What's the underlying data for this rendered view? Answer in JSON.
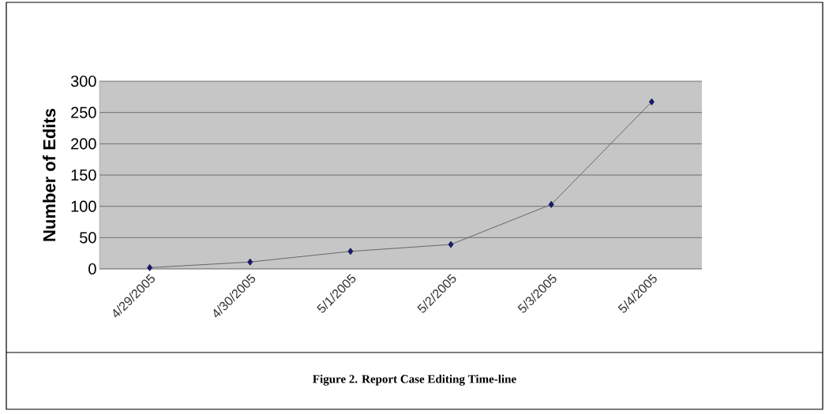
{
  "chart_data": {
    "type": "line",
    "title": "Figure 2.  Report Case Editing Time-line",
    "ylabel": "Number of Edits",
    "categories": [
      "4/29/2005",
      "4/30/2005",
      "5/1/2005",
      "5/2/2005",
      "5/3/2005",
      "5/4/2005"
    ],
    "series": [
      {
        "color": "#1a1a66",
        "values": [
          2,
          11,
          28,
          39,
          103,
          267
        ]
      }
    ],
    "ylim": [
      0,
      300
    ],
    "yticks": [
      0,
      50,
      100,
      150,
      200,
      250,
      300
    ],
    "grid": "y",
    "marker": "diamond",
    "line_style": "solid"
  }
}
